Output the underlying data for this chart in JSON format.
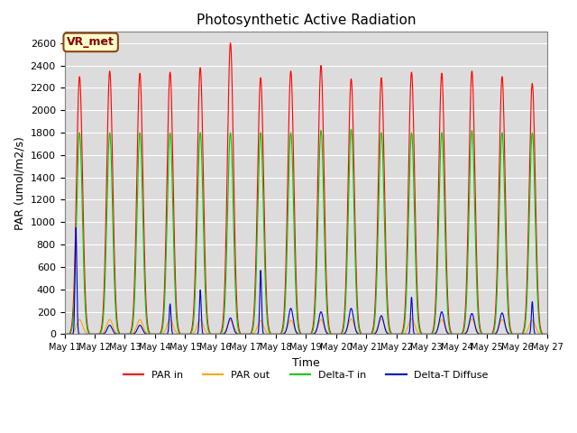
{
  "title": "Photosynthetic Active Radiation",
  "ylabel": "PAR (umol/m2/s)",
  "xlabel": "Time",
  "annotation": "VR_met",
  "ylim": [
    0,
    2700
  ],
  "yticks": [
    0,
    200,
    400,
    600,
    800,
    1000,
    1200,
    1400,
    1600,
    1800,
    2000,
    2200,
    2400,
    2600
  ],
  "color_par_in": "#ff0000",
  "color_par_out": "#ffa500",
  "color_delta_t_in": "#00cc00",
  "color_delta_t_diffuse": "#0000cc",
  "legend_labels": [
    "PAR in",
    "PAR out",
    "Delta-T in",
    "Delta-T Diffuse"
  ],
  "background_color": "#dcdcdc",
  "n_days": 16,
  "start_day": 11,
  "points_per_day": 288
}
